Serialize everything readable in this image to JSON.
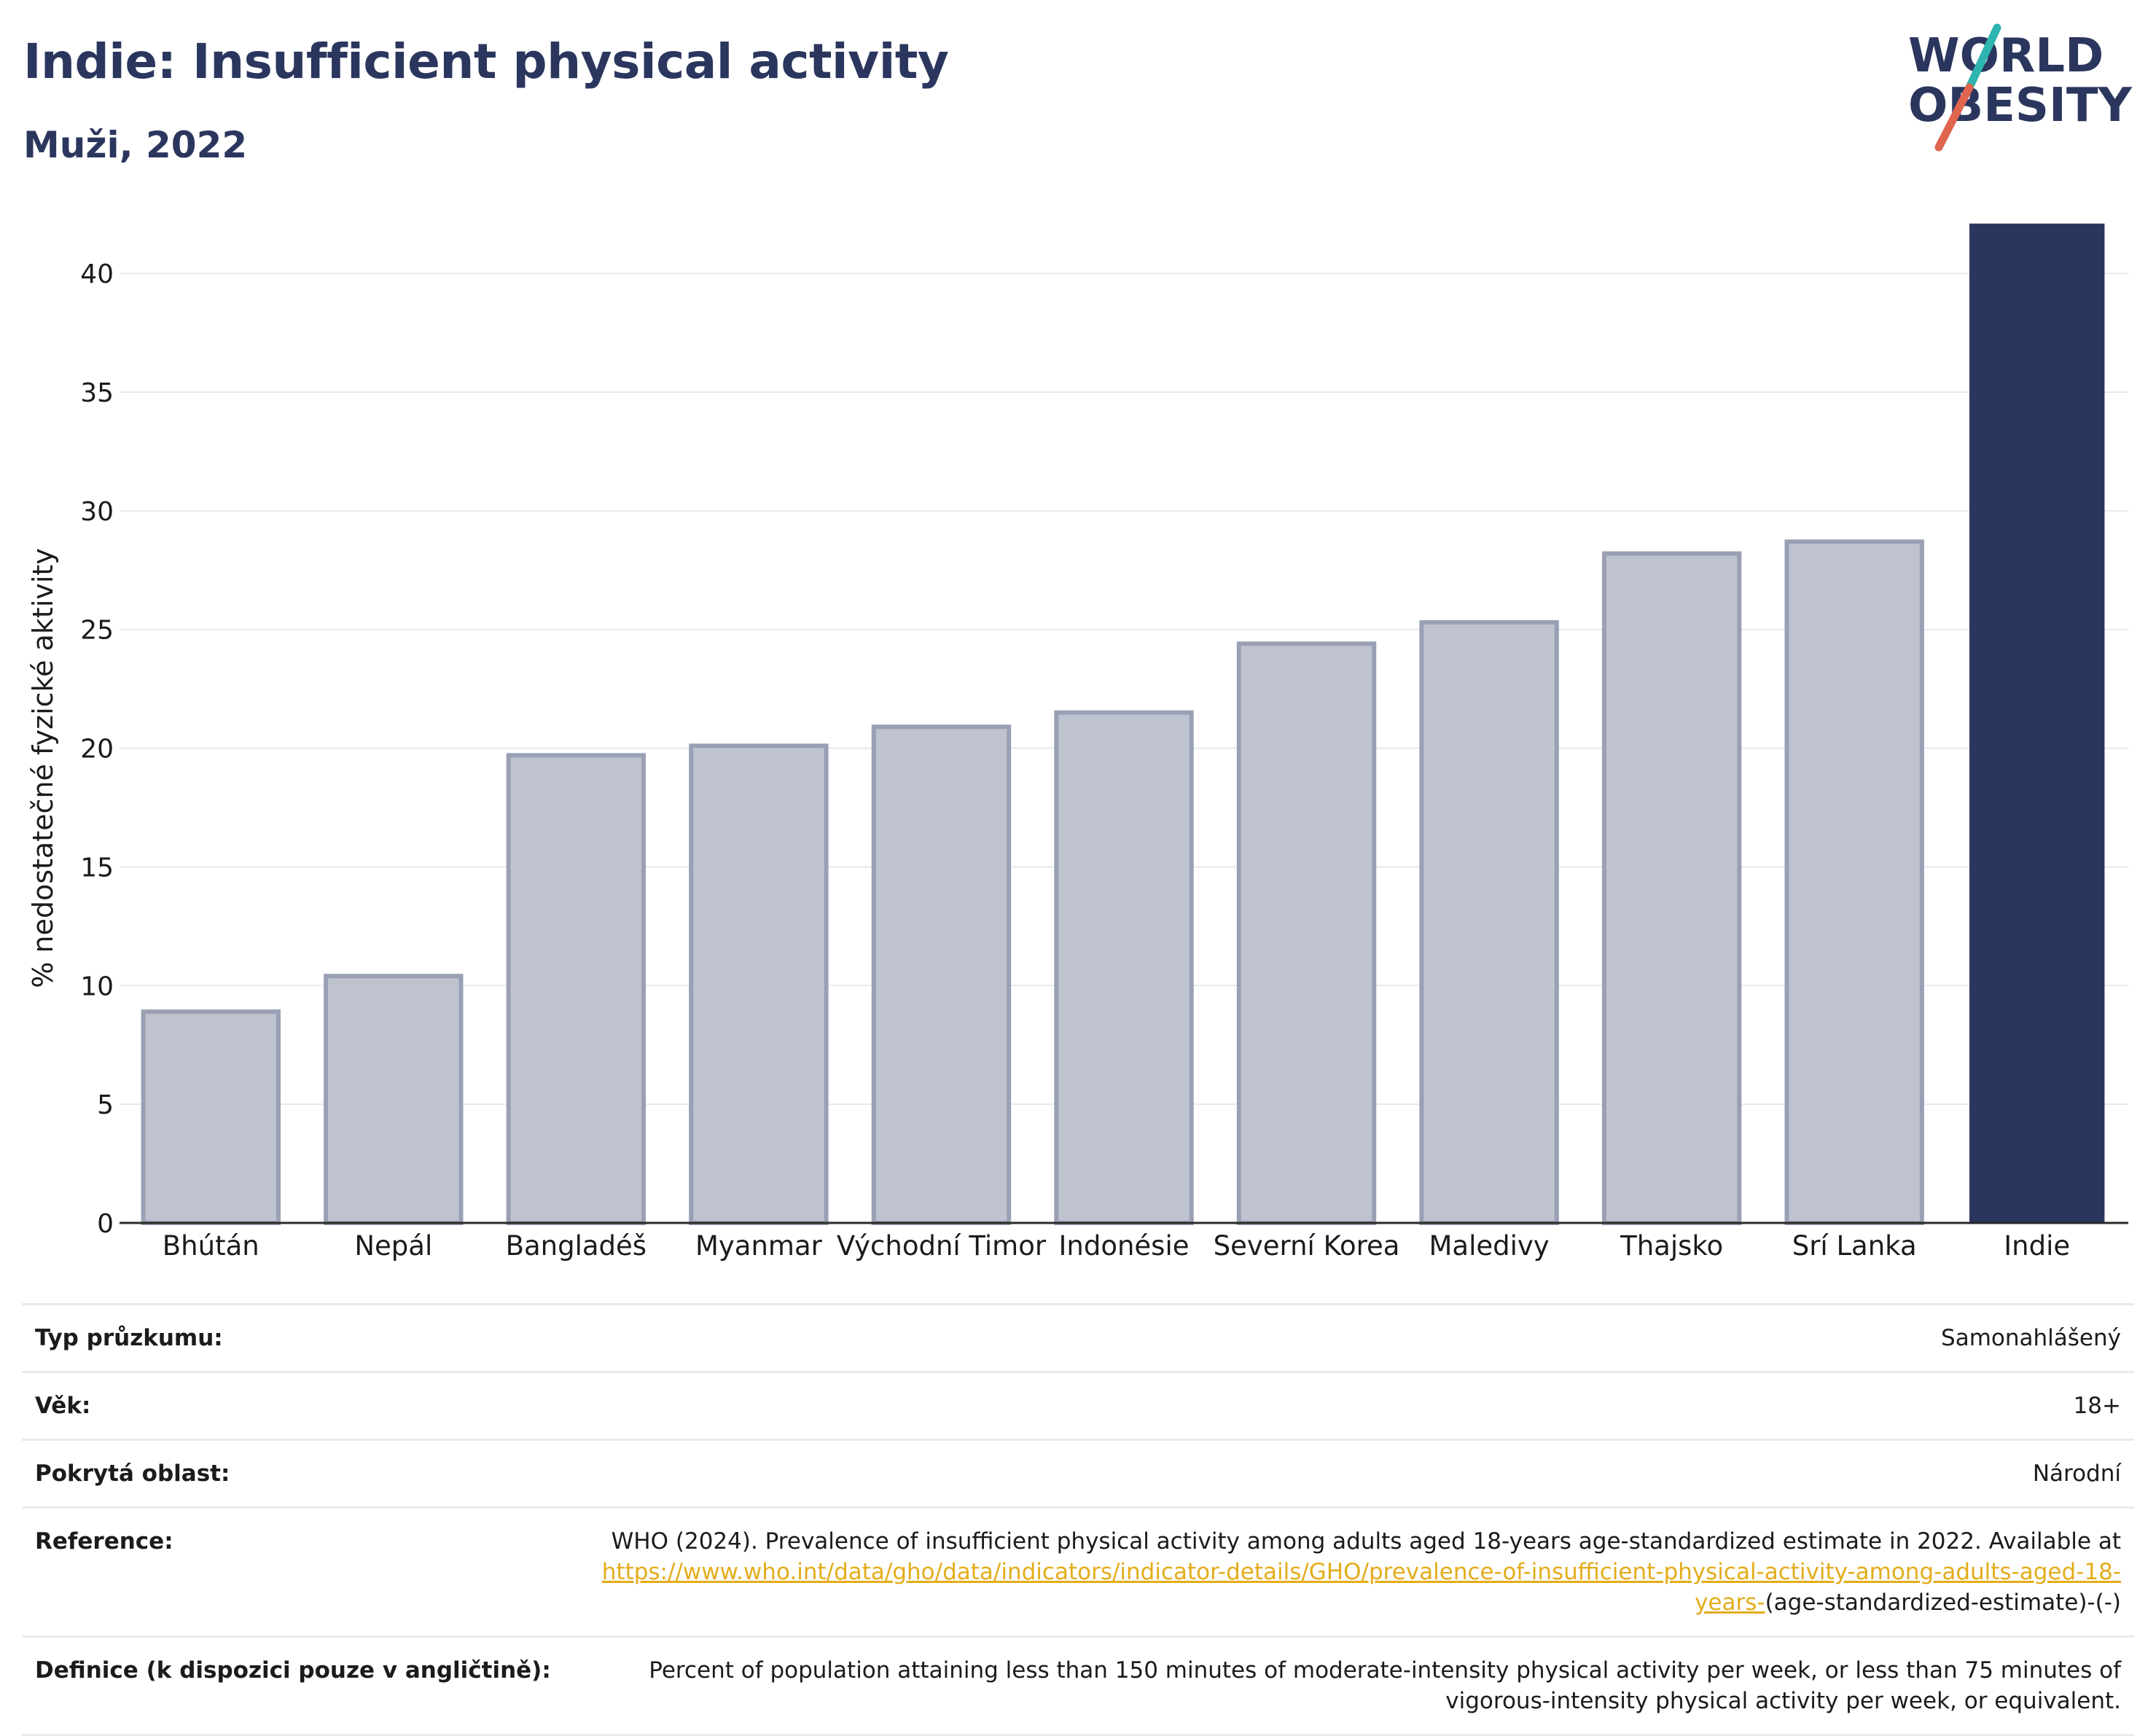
{
  "title": "Indie: Insufficient physical activity",
  "subtitle": "Muži, 2022",
  "logo": {
    "line1": "WORLD",
    "line2": "OBESITY",
    "colors": {
      "text": "#2b365e",
      "slash_top": "#2fb5b0",
      "slash_bottom": "#e0654e"
    }
  },
  "colors": {
    "highlight_bar": "#2b365e",
    "other_bar_fill": "#bfc3d0",
    "other_bar_stroke": "#9aa0b4",
    "grid": "#e6e8ec",
    "link": "#e3ac1a"
  },
  "chart_data": {
    "type": "bar",
    "title": "Indie: Insufficient physical activity",
    "subtitle": "Muži, 2022",
    "xlabel": "",
    "ylabel": "% nedostatečné fyzické aktivity",
    "ylim": [
      0,
      42
    ],
    "yticks": [
      0,
      5,
      10,
      15,
      20,
      25,
      30,
      35,
      40
    ],
    "grid": true,
    "categories": [
      "Bhútán",
      "Nepál",
      "Bangladéš",
      "Myanmar",
      "Východní Timor",
      "Indonésie",
      "Severní Korea",
      "Maledivy",
      "Thajsko",
      "Srí Lanka",
      "Indie"
    ],
    "values": [
      8.9,
      10.4,
      19.7,
      20.1,
      20.9,
      21.5,
      24.4,
      25.3,
      28.2,
      28.7,
      42.1
    ],
    "highlight": "Indie"
  },
  "details": [
    {
      "key": "Typ průzkumu:",
      "value": "Samonahlášený"
    },
    {
      "key": "Věk:",
      "value": "18+"
    },
    {
      "key": "Pokrytá oblast:",
      "value": "Národní"
    }
  ],
  "reference": {
    "key": "Reference:",
    "text": "WHO (2024). Prevalence of insufficient physical activity among adults aged 18-years age-standardized estimate in 2022. Available at",
    "link": "https://www.who.int/data/gho/data/indicators/indicator-details/GHO/prevalence-of-insufficient-physical-activity-among-adults-aged-18-years-",
    "suffix": "(age-standardized-estimate)-(-)"
  },
  "definition": {
    "key": "Definice (k dispozici pouze v angličtině):",
    "value": "Percent of population attaining less than 150 minutes of moderate-intensity physical activity per week, or less than 75 minutes of vigorous-intensity physical activity per week, or equivalent."
  }
}
